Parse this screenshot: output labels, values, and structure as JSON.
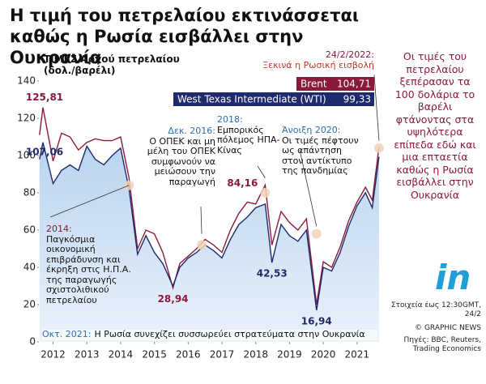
{
  "title": "Η τιμή του πετρελαίου εκτινάσσεται καθώς η Ρωσία εισβάλλει στην Ουκρανία",
  "side_note": "Οι τιμές του πετρελαίου ξεπέρασαν τα 100 δολάρια το βαρέλι φτάνοντας στα υψηλότερα επίπεδα εδώ και μια επταετία καθώς η Ρωσία εισβάλλει στην Ουκρανία",
  "logo": "in",
  "footer": {
    "note": "Στοιχεία έως 12:30GMT, 24/2",
    "credit": "© GRAPHIC NEWS",
    "sources": "Πηγές: BBC, Reuters, Trading Economics"
  },
  "chart_data": {
    "type": "line",
    "y_label": "ΤΙΜΕΣ Αργού πετρελαίου (δολ./βαρέλι)",
    "xlim": [
      2012.08,
      2022.2
    ],
    "xticks": [
      {
        "value": 2012.5,
        "label": "2012"
      },
      {
        "value": 2013.5,
        "label": "2013"
      },
      {
        "value": 2014.5,
        "label": "2014"
      },
      {
        "value": 2015.5,
        "label": "2015"
      },
      {
        "value": 2016.5,
        "label": "2016"
      },
      {
        "value": 2017.5,
        "label": "2017"
      },
      {
        "value": 2018.5,
        "label": "2018"
      },
      {
        "value": 2019.5,
        "label": "2019"
      },
      {
        "value": 2020.5,
        "label": "2020"
      },
      {
        "value": 2021.5,
        "label": "2021"
      }
    ],
    "ylim": [
      0,
      140
    ],
    "yticks": [
      0,
      20,
      40,
      60,
      80,
      100,
      120,
      140
    ],
    "x": [
      2012.1,
      2012.2,
      2012.5,
      2012.75,
      2013.0,
      2013.25,
      2013.5,
      2013.75,
      2014.0,
      2014.25,
      2014.5,
      2014.75,
      2015.0,
      2015.25,
      2015.5,
      2015.75,
      2016.05,
      2016.25,
      2016.5,
      2016.75,
      2017.0,
      2017.25,
      2017.5,
      2017.75,
      2018.0,
      2018.25,
      2018.5,
      2018.78,
      2018.98,
      2019.25,
      2019.5,
      2019.75,
      2020.0,
      2020.3,
      2020.5,
      2020.75,
      2021.0,
      2021.25,
      2021.5,
      2021.75,
      2021.95,
      2022.15
    ],
    "series": [
      {
        "name": "Brent",
        "color": "#8b1a3a",
        "values": [
          111,
          125.81,
          97,
          112,
          110,
          103,
          107,
          109,
          108,
          108,
          110,
          88,
          50,
          60,
          58,
          48,
          28.94,
          42,
          46,
          50,
          55,
          52,
          48,
          60,
          69,
          75,
          74,
          84.16,
          52,
          70,
          64,
          60,
          66,
          20,
          43,
          40,
          51,
          65,
          75,
          83,
          76,
          104.71
        ],
        "value_labels": [
          null,
          "125,81",
          null,
          null,
          null,
          null,
          null,
          null,
          null,
          null,
          null,
          null,
          null,
          null,
          null,
          null,
          "28,94",
          null,
          null,
          null,
          null,
          null,
          null,
          null,
          null,
          null,
          null,
          "84,16",
          null,
          null,
          null,
          null,
          null,
          null,
          null,
          null,
          null,
          null,
          null,
          null,
          null,
          "104,71"
        ]
      },
      {
        "name": "West Texas Intermediate (WTI)",
        "color": "#1f2a6e",
        "values": [
          98,
          107.06,
          85,
          92,
          95,
          92,
          105,
          98,
          95,
          100,
          104,
          82,
          47,
          57,
          48,
          42,
          30,
          40,
          45,
          48,
          52,
          49,
          45,
          55,
          63,
          67,
          72,
          74,
          42.53,
          63,
          57,
          54,
          60,
          16.94,
          40,
          38,
          48,
          62,
          73,
          80,
          72,
          99.33
        ],
        "value_labels": [
          null,
          "107,06",
          null,
          null,
          null,
          null,
          null,
          null,
          null,
          null,
          null,
          null,
          null,
          null,
          null,
          null,
          null,
          null,
          null,
          null,
          null,
          null,
          null,
          null,
          null,
          null,
          null,
          null,
          "42,53",
          null,
          null,
          null,
          null,
          "16,94",
          null,
          null,
          null,
          null,
          null,
          null,
          null,
          "99,33"
        ]
      }
    ],
    "annotations": [
      {
        "date": "2014:",
        "text": "Παγκόσμια οικονομική επιβράδυνση και έκρηξη στις Η.Π.Α. της παραγωγής σχιστολιθικού πετρελαίου"
      },
      {
        "date": "Δεκ. 2016:",
        "text": "Ο ΟΠΕΚ και μη μέλη του ΟΠΕΚ συμφωνούν να μειώσουν την παραγωγή"
      },
      {
        "date": "2018:",
        "text": "Εμπορικός πόλεμος ΗΠΑ-Κίνας"
      },
      {
        "date": "Άνοιξη 2020:",
        "text": "Οι τιμές πέφτουν ως απάντηση στον αντίκτυπο της πανδημίας"
      },
      {
        "date": "24/2/2022:",
        "text": "Ξεκινά η Ρωσική εισβολή"
      },
      {
        "date": "Οκτ. 2021:",
        "text": "Η Ρωσία συνεχίζει συσσωρεύει στρατεύματα στην Ουκρανία"
      }
    ]
  }
}
